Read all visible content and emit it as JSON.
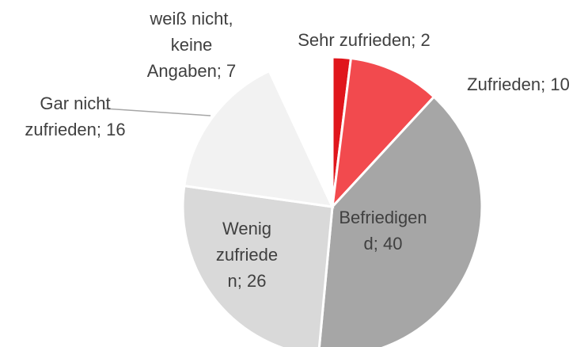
{
  "chart_data": {
    "type": "pie",
    "values": [
      2,
      10,
      40,
      26,
      16,
      7
    ],
    "value_labels": [
      [
        "Sehr zufrieden; 2"
      ],
      [
        "Zufrieden; 10"
      ],
      [
        "Befriedigen",
        "d; 40"
      ],
      [
        "Wenig",
        "zufriede",
        "n; 26"
      ],
      [
        "Gar nicht",
        "zufrieden; 16"
      ],
      [
        "weiß nicht,",
        "keine",
        "Angaben; 7"
      ]
    ],
    "colors": [
      "#e0161c",
      "#f24a4e",
      "#a6a6a6",
      "#d9d9d9",
      "#f2f2f2",
      "#ffffff"
    ]
  }
}
